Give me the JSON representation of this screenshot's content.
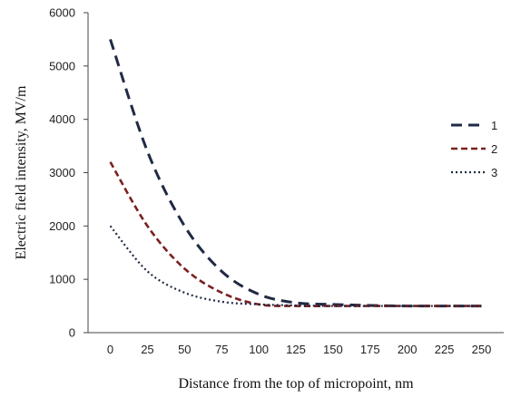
{
  "chart_data": {
    "type": "line",
    "title": "",
    "xlabel": "Distance from the top of micropoint, nm",
    "ylabel": "Electric field intensity, MV/m",
    "xlim": [
      -15,
      265
    ],
    "ylim": [
      0,
      6000
    ],
    "x_ticks": [
      0,
      25,
      50,
      75,
      100,
      125,
      150,
      175,
      200,
      225,
      250
    ],
    "y_ticks": [
      0,
      1000,
      2000,
      3000,
      4000,
      5000,
      6000
    ],
    "grid": false,
    "legend_position": "right",
    "series": [
      {
        "name": "1",
        "color": "#1f2a44",
        "style": "dashed",
        "x": [
          0,
          25,
          50,
          75,
          100,
          125,
          150,
          175,
          200,
          225,
          250
        ],
        "values": [
          5500,
          3400,
          2000,
          1150,
          720,
          560,
          530,
          510,
          500,
          500,
          500
        ]
      },
      {
        "name": "2",
        "color": "#7a2020",
        "style": "dashed",
        "x": [
          0,
          25,
          50,
          75,
          100,
          125,
          150,
          175,
          200,
          225,
          250
        ],
        "values": [
          3200,
          2000,
          1200,
          750,
          530,
          500,
          500,
          500,
          500,
          500,
          500
        ]
      },
      {
        "name": "3",
        "color": "#1f2a44",
        "style": "dotted",
        "x": [
          0,
          25,
          50,
          75,
          100,
          125,
          150,
          175,
          200,
          225,
          250
        ],
        "values": [
          2000,
          1150,
          750,
          580,
          530,
          510,
          500,
          500,
          500,
          500,
          500
        ]
      }
    ]
  }
}
